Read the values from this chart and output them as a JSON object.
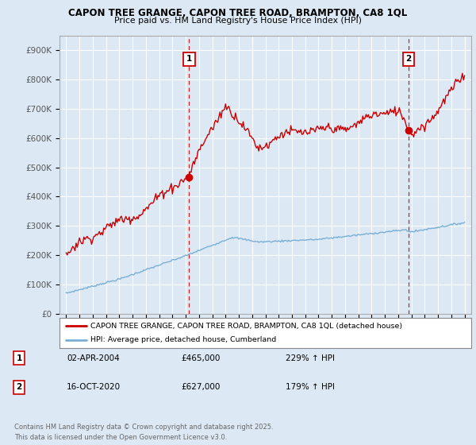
{
  "title": "CAPON TREE GRANGE, CAPON TREE ROAD, BRAMPTON, CA8 1QL",
  "subtitle": "Price paid vs. HM Land Registry's House Price Index (HPI)",
  "background_color": "#dce9f5",
  "plot_bg_color": "#dce9f5",
  "ylim": [
    0,
    950000
  ],
  "yticks": [
    0,
    100000,
    200000,
    300000,
    400000,
    500000,
    600000,
    700000,
    800000,
    900000
  ],
  "ytick_labels": [
    "£0",
    "£100K",
    "£200K",
    "£300K",
    "£400K",
    "£500K",
    "£600K",
    "£700K",
    "£800K",
    "£900K"
  ],
  "sale1_x": 2004.25,
  "sale1_y": 465000,
  "sale2_x": 2020.79,
  "sale2_y": 627000,
  "red_line_color": "#cc0000",
  "blue_line_color": "#7aafd4",
  "dashed_color": "#cc0000",
  "legend_label_red": "CAPON TREE GRANGE, CAPON TREE ROAD, BRAMPTON, CA8 1QL (detached house)",
  "legend_label_blue": "HPI: Average price, detached house, Cumberland",
  "table_entries": [
    {
      "num": "1",
      "date": "02-APR-2004",
      "price": "£465,000",
      "hpi": "229% ↑ HPI"
    },
    {
      "num": "2",
      "date": "16-OCT-2020",
      "price": "£627,000",
      "hpi": "179% ↑ HPI"
    }
  ],
  "footer": "Contains HM Land Registry data © Crown copyright and database right 2025.\nThis data is licensed under the Open Government Licence v3.0.",
  "grid_color": "#ffffff",
  "tick_color": "#555555",
  "xlim": [
    1994.5,
    2025.5
  ]
}
